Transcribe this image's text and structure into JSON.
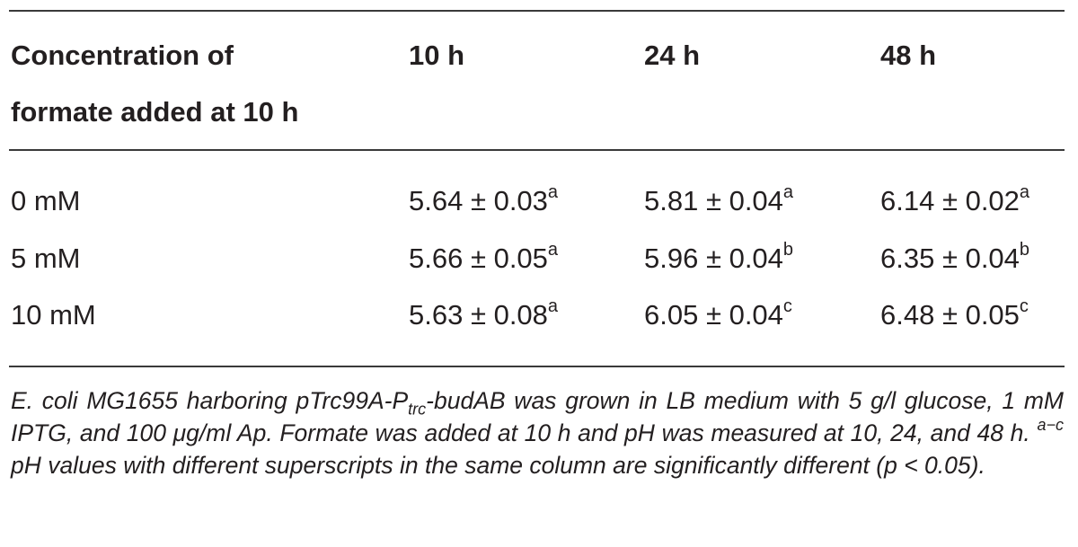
{
  "table": {
    "header": {
      "col0_line1": "Concentration of",
      "col0_line2": "formate added at 10 h",
      "col1": "10 h",
      "col2": "24 h",
      "col3": "48 h"
    },
    "rows": [
      {
        "concentration": "0 mM",
        "cells": [
          {
            "value": "5.64 ± 0.03",
            "sup": "a"
          },
          {
            "value": "5.81 ± 0.04",
            "sup": "a"
          },
          {
            "value": "6.14 ± 0.02",
            "sup": "a"
          }
        ]
      },
      {
        "concentration": "5 mM",
        "cells": [
          {
            "value": "5.66 ± 0.05",
            "sup": "a"
          },
          {
            "value": "5.96 ± 0.04",
            "sup": "b"
          },
          {
            "value": "6.35 ± 0.04",
            "sup": "b"
          }
        ]
      },
      {
        "concentration": "10 mM",
        "cells": [
          {
            "value": "5.63 ± 0.08",
            "sup": "a"
          },
          {
            "value": "6.05 ± 0.04",
            "sup": "c"
          },
          {
            "value": "6.48 ± 0.05",
            "sup": "c"
          }
        ]
      }
    ]
  },
  "footnote": {
    "part1": "E. coli MG1655 harboring pTrc99A-P",
    "sub": "trc",
    "part2": "-budAB was grown in LB medium with 5 g/l glucose, 1 mM IPTG, and 100 μg/ml Ap. Formate was added at 10 h and pH was measured at 10, 24, and 48 h. ",
    "sup": "a−c",
    "part3": " pH values with different superscripts in the same column are significantly different (p < 0.05)."
  }
}
